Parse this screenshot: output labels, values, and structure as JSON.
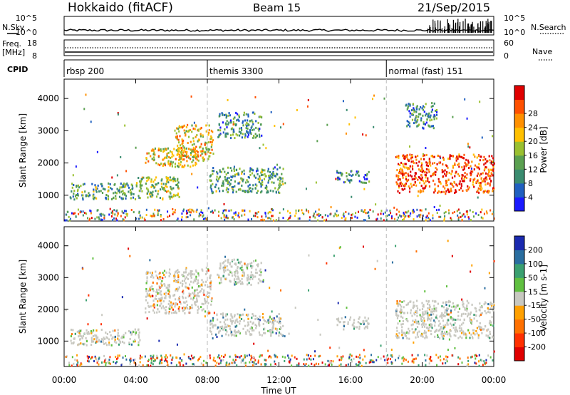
{
  "header": {
    "title": "Hokkaido (fitACF)",
    "beam": "Beam 15",
    "date": "21/Sep/2015"
  },
  "strip_labels": {
    "nsky": "N.Sky",
    "nsearch": "N.Search",
    "freq": "Freq.",
    "freq_unit": "[MHz]",
    "nave": "Nave",
    "cpid": "CPID"
  },
  "noise_axis_left": [
    "10^5",
    "10^0"
  ],
  "noise_axis_right": [
    "10^5",
    "10^0"
  ],
  "freq_axis_left": [
    "18",
    "8"
  ],
  "nave_axis_right": [
    "60",
    "0"
  ],
  "cpid_segments": [
    {
      "label": "rbsp 200",
      "start_hour": 0
    },
    {
      "label": "themis 3300",
      "start_hour": 8
    },
    {
      "label": "normal (fast) 151",
      "start_hour": 18
    }
  ],
  "xaxis": {
    "label": "Time UT",
    "ticks": [
      "00:00",
      "04:00",
      "08:00",
      "12:00",
      "16:00",
      "20:00",
      "00:00"
    ]
  },
  "chart_data": [
    {
      "type": "heatmap",
      "name": "power",
      "ylabel": "Slant Range [km]",
      "yticks": [
        "1000",
        "2000",
        "3000",
        "4000"
      ],
      "ylim": [
        200,
        4600
      ],
      "xlim_hours": [
        0,
        24
      ],
      "colorbar": {
        "label": "Power [dB]",
        "ticks": [
          "4",
          "8",
          "12",
          "16",
          "20",
          "24",
          "28"
        ],
        "colors": [
          "#1a1aff",
          "#2060c0",
          "#3a8c70",
          "#5aa050",
          "#9ac030",
          "#ffc000",
          "#ff9000",
          "#ff5000",
          "#e00000"
        ]
      },
      "regions": [
        {
          "t": [
            0.3,
            4.2
          ],
          "r": [
            900,
            1400
          ],
          "level": 0.35
        },
        {
          "t": [
            4.0,
            6.4
          ],
          "r": [
            900,
            1600
          ],
          "level": 0.45
        },
        {
          "t": [
            4.5,
            7.4
          ],
          "r": [
            1900,
            2500
          ],
          "level": 0.6
        },
        {
          "t": [
            6.2,
            8.3
          ],
          "r": [
            2100,
            3200
          ],
          "level": 0.6
        },
        {
          "t": [
            8.5,
            11.0
          ],
          "r": [
            2800,
            3600
          ],
          "level": 0.3
        },
        {
          "t": [
            8.1,
            12.2
          ],
          "r": [
            1100,
            1900
          ],
          "level": 0.35
        },
        {
          "t": [
            15.2,
            17.0
          ],
          "r": [
            1400,
            1800
          ],
          "level": 0.25
        },
        {
          "t": [
            18.5,
            24.0
          ],
          "r": [
            1100,
            2300
          ],
          "level": 0.85
        },
        {
          "t": [
            19.0,
            20.8
          ],
          "r": [
            3100,
            3900
          ],
          "level": 0.3
        }
      ]
    },
    {
      "type": "heatmap",
      "name": "velocity",
      "ylabel": "Slant Range [km]",
      "yticks": [
        "1000",
        "2000",
        "3000",
        "4000"
      ],
      "ylim": [
        200,
        4600
      ],
      "xlim_hours": [
        0,
        24
      ],
      "colorbar": {
        "label": "Velocity [m s-1]",
        "ticks": [
          "200",
          "100",
          "50",
          "15",
          "-15",
          "-50",
          "-100",
          "-200"
        ],
        "colors": [
          "#1a2ab0",
          "#2a6ea0",
          "#3aa070",
          "#60c040",
          "#c8c8c0",
          "#ffa000",
          "#ff7000",
          "#ff3000",
          "#e00000"
        ]
      },
      "regions": [
        {
          "t": [
            0.3,
            4.2
          ],
          "r": [
            900,
            1400
          ],
          "level": 0.45
        },
        {
          "t": [
            4.5,
            8.2
          ],
          "r": [
            1900,
            3300
          ],
          "level": 0.6
        },
        {
          "t": [
            8.5,
            11.0
          ],
          "r": [
            2800,
            3600
          ],
          "level": 0.45
        },
        {
          "t": [
            8.1,
            12.2
          ],
          "r": [
            1200,
            1900
          ],
          "level": 0.35
        },
        {
          "t": [
            15.2,
            17.0
          ],
          "r": [
            1400,
            1800
          ],
          "level": 0.3
        },
        {
          "t": [
            18.5,
            24.0
          ],
          "r": [
            1100,
            2300
          ],
          "level": 0.45
        }
      ]
    }
  ]
}
